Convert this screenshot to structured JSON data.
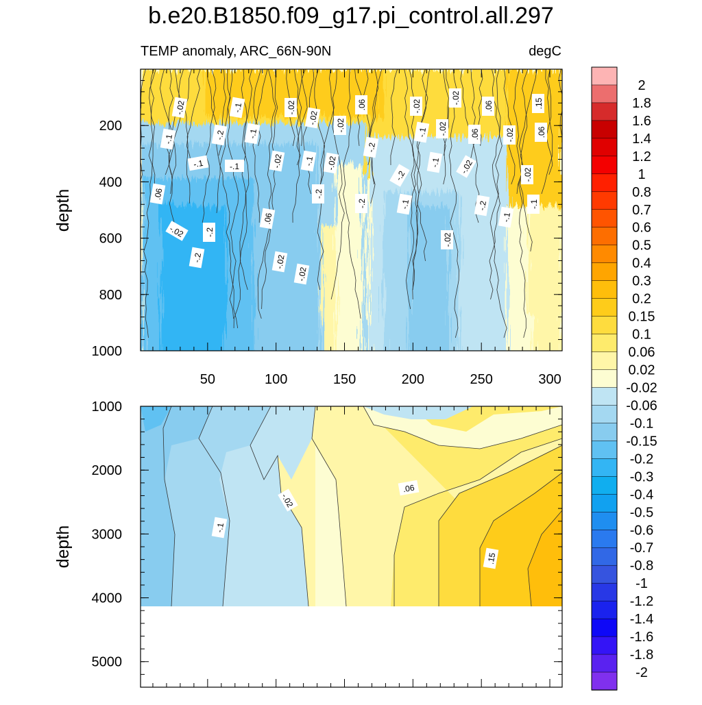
{
  "chart_data": {
    "type": "heatmap",
    "title": "b.e20.B1850.f09_g17.pi_control.all.297",
    "subtitle_left": "TEMP anomaly, ARC_66N-90N",
    "subtitle_right": "degC",
    "xlabel": "",
    "ylabel": "depth",
    "x_ticks": [
      "50",
      "100",
      "150",
      "200",
      "250",
      "300"
    ],
    "xlim": [
      1,
      309
    ],
    "panels": [
      {
        "name": "upper",
        "ylim": [
          0,
          1000
        ],
        "y_ticks": [
          "200",
          "400",
          "600",
          "800",
          "1000"
        ],
        "contour_labels": [
          "-.02",
          "-.1",
          "-.02",
          ".06",
          "-.02",
          "-.02",
          ".06",
          ".15",
          "-.1",
          "-.2",
          "-.1",
          "-.02",
          "-.02",
          "-.1",
          "-.02",
          ".06",
          "-.02",
          ".06",
          "-.1",
          "-.1",
          "-.02",
          "-.1",
          "-.02",
          "-.2",
          "-.2",
          "-.1",
          "-.02",
          "-.02",
          ".06",
          "-.2",
          "-.2",
          "-.1",
          "-.2",
          "-.1",
          "-.1",
          "-.02",
          "-.2",
          ".06",
          "-.02",
          "-.2",
          "-.02",
          "-.02"
        ]
      },
      {
        "name": "lower",
        "ylim": [
          1000,
          5400
        ],
        "y_ticks": [
          "1000",
          "2000",
          "3000",
          "4000",
          "5000"
        ],
        "data_bottom": 4100,
        "contour_labels": [
          "-.02",
          ".06",
          "-.1",
          ".15"
        ]
      }
    ],
    "colorbar": {
      "levels": [
        "2",
        "1.8",
        "1.6",
        "1.4",
        "1.2",
        "1",
        "0.8",
        "0.7",
        "0.6",
        "0.5",
        "0.4",
        "0.3",
        "0.2",
        "0.15",
        "0.1",
        "0.06",
        "0.02",
        "-0.02",
        "-0.06",
        "-0.1",
        "-0.15",
        "-0.2",
        "-0.3",
        "-0.4",
        "-0.5",
        "-0.6",
        "-0.7",
        "-0.8",
        "-1",
        "-1.2",
        "-1.4",
        "-1.6",
        "-1.8",
        "-2"
      ],
      "colors": [
        "#fdb4b4",
        "#ec6e6e",
        "#d62b2b",
        "#c80000",
        "#e00000",
        "#f40000",
        "#ff2000",
        "#ff3a00",
        "#ff5400",
        "#fd6e00",
        "#ff8a00",
        "#ffa500",
        "#ffbe0b",
        "#fecc1a",
        "#fedc3e",
        "#feeb6c",
        "#fff6a8",
        "#fdfdd2",
        "#bfe4f3",
        "#a4d8f1",
        "#88ccef",
        "#60c1f2",
        "#33b5f4",
        "#10aeef",
        "#11a1f0",
        "#1f8ef0",
        "#2a7aef",
        "#3168e6",
        "#3654df",
        "#2838e6",
        "#1a22ee",
        "#0e08f7",
        "#3414f6",
        "#5a22f0",
        "#8030ee"
      ]
    }
  }
}
